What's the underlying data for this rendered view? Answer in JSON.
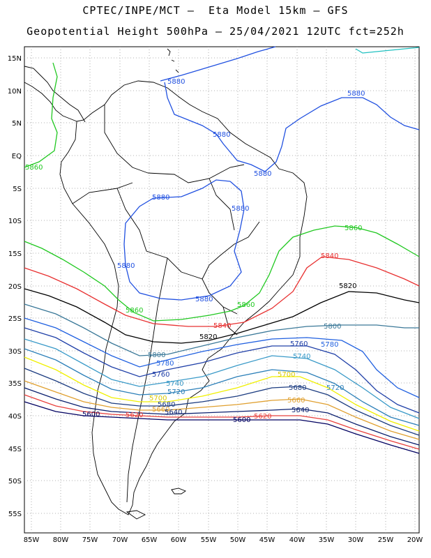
{
  "title_line1": "CPTEC/INPE/MCT –  Eta Model 15km – GFS",
  "title_line2": "Geopotential Height 500hPa – 25/04/2021 12UTC fct=252h",
  "lat_labels": [
    "15N",
    "10N",
    "5N",
    "EQ",
    "5S",
    "10S",
    "15S",
    "20S",
    "25S",
    "30S",
    "35S",
    "40S",
    "45S",
    "50S",
    "55S"
  ],
  "lon_labels": [
    "85W",
    "80W",
    "75W",
    "70W",
    "65W",
    "60W",
    "55W",
    "50W",
    "45W",
    "40W",
    "35W",
    "30W",
    "25W",
    "20W"
  ],
  "colors": {
    "5600": "#000060",
    "5620": "#e8403c",
    "5640": "#0a1f6e",
    "5660": "#e0a030",
    "5680": "#1c3c80",
    "5700": "#f0f000",
    "5720": "#2b7fb8",
    "5740": "#3a9ac8",
    "5760": "#2040a8",
    "5780": "#2060e0",
    "5800": "#3a7898",
    "5820": "#000000",
    "5840": "#e83030",
    "5860": "#20c820",
    "5880": "#2050e0",
    "5900": "#20c0c0",
    "coast": "#000000",
    "grid": "#999999"
  },
  "contour_labels": [
    {
      "text": "5880",
      "key": "5880"
    },
    {
      "text": "5880",
      "key": "5880"
    },
    {
      "text": "5880",
      "key": "5880"
    },
    {
      "text": "5880",
      "key": "5880"
    },
    {
      "text": "5880",
      "key": "5880"
    },
    {
      "text": "5880",
      "key": "5880"
    },
    {
      "text": "5880",
      "key": "5880"
    },
    {
      "text": "5880",
      "key": "5880"
    },
    {
      "text": "5860",
      "key": "5860"
    },
    {
      "text": "5860",
      "key": "5860"
    },
    {
      "text": "5860",
      "key": "5860"
    },
    {
      "text": "5860",
      "key": "5860"
    },
    {
      "text": "5840",
      "key": "5840"
    },
    {
      "text": "5840",
      "key": "5840"
    },
    {
      "text": "5820",
      "key": "5820"
    },
    {
      "text": "5820",
      "key": "5820"
    },
    {
      "text": "5800",
      "key": "5800"
    },
    {
      "text": "5800",
      "key": "5800"
    },
    {
      "text": "5780",
      "key": "5780"
    },
    {
      "text": "5780",
      "key": "5780"
    },
    {
      "text": "5760",
      "key": "5760"
    },
    {
      "text": "5760",
      "key": "5760"
    },
    {
      "text": "5740",
      "key": "5740"
    },
    {
      "text": "5740",
      "key": "5740"
    },
    {
      "text": "5720",
      "key": "5720"
    },
    {
      "text": "5720",
      "key": "5720"
    },
    {
      "text": "5700",
      "key": "5700"
    },
    {
      "text": "5700",
      "key": "5700"
    },
    {
      "text": "5680",
      "key": "5680"
    },
    {
      "text": "5680",
      "key": "5680"
    },
    {
      "text": "5660",
      "key": "5660"
    },
    {
      "text": "5660",
      "key": "5660"
    },
    {
      "text": "5640",
      "key": "5640"
    },
    {
      "text": "5640",
      "key": "5640"
    },
    {
      "text": "5620",
      "key": "5620"
    },
    {
      "text": "5620",
      "key": "5620"
    },
    {
      "text": "5600",
      "key": "5600"
    },
    {
      "text": "5600",
      "key": "5600"
    }
  ]
}
